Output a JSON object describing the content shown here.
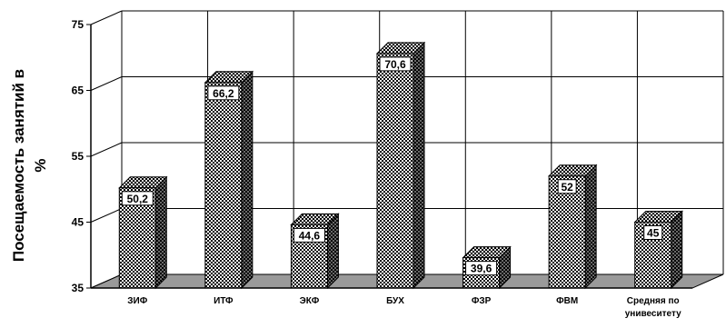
{
  "chart_data": {
    "type": "bar",
    "title": "",
    "xlabel": "",
    "ylabel_lines": [
      "Посещаемость занятий в",
      "%"
    ],
    "categories": [
      [
        "ЗИФ"
      ],
      [
        "ИТФ"
      ],
      [
        "ЭКФ"
      ],
      [
        "БУХ"
      ],
      [
        "ФЗР"
      ],
      [
        "ФВМ"
      ],
      [
        "Средняя по",
        "унивеситету"
      ]
    ],
    "values": [
      50.2,
      66.2,
      44.6,
      70.6,
      39.6,
      52,
      45
    ],
    "value_labels": [
      "50,2",
      "66,2",
      "44,6",
      "70,6",
      "39,6",
      "52",
      "45"
    ],
    "yticks": [
      35,
      45,
      55,
      65,
      75
    ],
    "ylim": [
      35,
      75
    ],
    "grid": true,
    "legend": "none",
    "colors": {
      "bar_front": "#ffffff",
      "bar_pattern": "#000000",
      "floor": "#9a9a9a",
      "grid": "#000000"
    }
  }
}
